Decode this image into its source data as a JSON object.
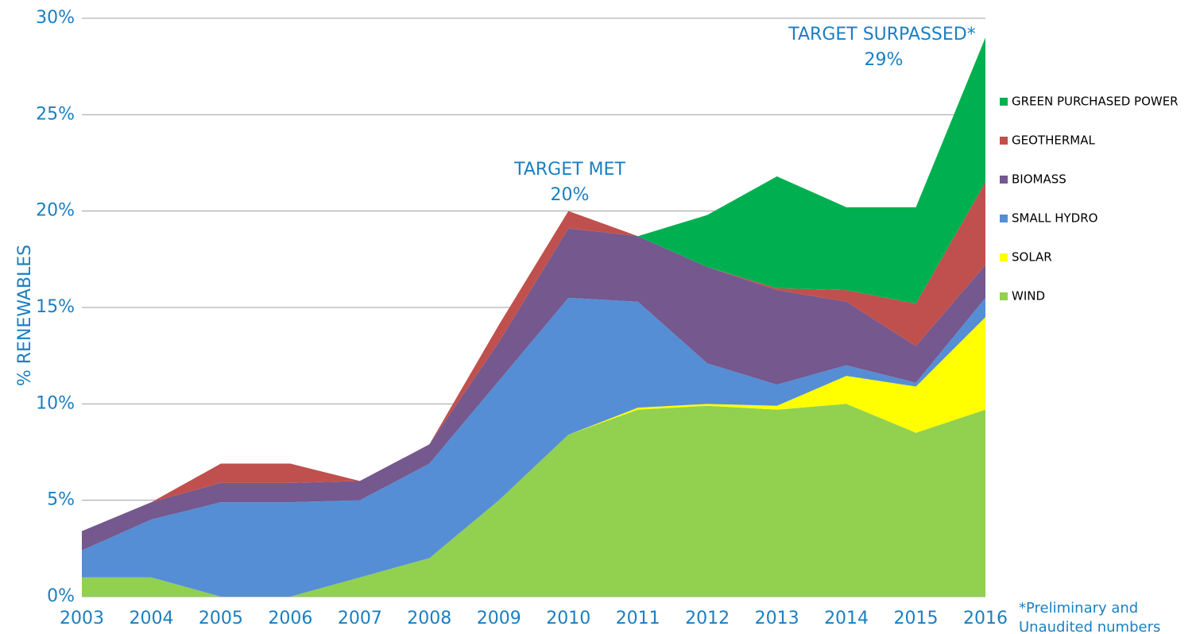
{
  "chart_data": {
    "type": "stacked_area",
    "y_label": "% RENEWABLES",
    "categories": [
      "2003",
      "2004",
      "2005",
      "2006",
      "2007",
      "2008",
      "2009",
      "2010",
      "2011",
      "2012",
      "2013",
      "2014",
      "2015",
      "2016"
    ],
    "series": [
      {
        "name": "WIND",
        "color": "#92d050",
        "values": [
          1.0,
          1.0,
          0,
          0,
          1.0,
          2.0,
          5.0,
          8.4,
          9.7,
          9.9,
          9.7,
          10.0,
          8.5,
          9.7
        ]
      },
      {
        "name": "SOLAR",
        "color": "#ffff00",
        "values": [
          0,
          0,
          0,
          0,
          0,
          0,
          0,
          0,
          0.1,
          0.1,
          0.2,
          1.45,
          2.4,
          4.8
        ]
      },
      {
        "name": "SMALL HYDRO",
        "color": "#558ed5",
        "values": [
          1.4,
          3.0,
          4.9,
          4.9,
          4.0,
          4.9,
          6.2,
          7.1,
          5.5,
          2.1,
          1.1,
          0.55,
          0.2,
          1.0
        ]
      },
      {
        "name": "BIOMASS",
        "color": "#74588e",
        "values": [
          1.0,
          0.9,
          1.0,
          1.0,
          1.0,
          1.0,
          2.0,
          3.6,
          3.4,
          5.0,
          4.9,
          3.3,
          1.9,
          1.7
        ]
      },
      {
        "name": "GEOTHERMAL",
        "color": "#c0504d",
        "values": [
          0,
          0,
          1.0,
          1.0,
          0,
          0,
          0.9,
          0.9,
          0,
          0,
          0.1,
          0.6,
          2.2,
          4.3
        ]
      },
      {
        "name": "GREEN PURCHASED POWER",
        "color": "#00b050",
        "values": [
          0,
          0,
          0,
          0,
          0,
          0,
          0,
          0,
          0,
          2.7,
          5.8,
          4.3,
          5.0,
          7.5
        ]
      }
    ],
    "ylim": [
      0,
      30
    ],
    "yticks": [
      {
        "value": 0,
        "label": "0%"
      },
      {
        "value": 5,
        "label": "5%"
      },
      {
        "value": 10,
        "label": "10%"
      },
      {
        "value": 15,
        "label": "15%"
      },
      {
        "value": 20,
        "label": "20%"
      },
      {
        "value": 25,
        "label": "25%"
      },
      {
        "value": 30,
        "label": "30%"
      }
    ],
    "grid": true,
    "legend": "right",
    "annotations": [
      {
        "text": "TARGET MET",
        "value_text": "20%"
      },
      {
        "text": "TARGET SURPASSED*",
        "value_text": "29%"
      }
    ],
    "footnote": [
      "*Preliminary and",
      "Unaudited numbers"
    ]
  }
}
